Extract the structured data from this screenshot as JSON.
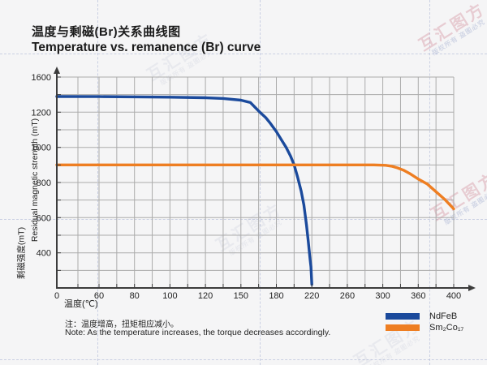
{
  "title": {
    "zh": "温度与剩磁(Br)关系曲线图",
    "en": "Temperature vs. remanence (Br) curve"
  },
  "axes": {
    "x": {
      "label": "温度(℃)",
      "ticks": [
        "0",
        "60",
        "80",
        "100",
        "120",
        "150",
        "180",
        "220",
        "260",
        "300",
        "360",
        "400"
      ]
    },
    "y": {
      "label_zh": "剩磁强度(mT)",
      "label_en": "Residual magnetic strength (mT)",
      "ticks": [
        "1600",
        "1200",
        "1000",
        "800",
        "600",
        "400"
      ]
    }
  },
  "chart_data": {
    "type": "line",
    "title": "温度与剩磁(Br)关系曲线图 / Temperature vs. remanence (Br) curve",
    "xlabel": "温度(℃)",
    "ylabel": "剩磁强度(mT) / Residual magnetic strength (mT)",
    "x_tick_values": [
      0,
      60,
      80,
      100,
      120,
      150,
      180,
      220,
      260,
      300,
      360,
      400
    ],
    "x_axis_style": "category-like: tick labels evenly spaced regardless of value",
    "y_tick_values": [
      1600,
      1200,
      1000,
      800,
      600,
      400,
      0
    ],
    "y_axis_style": "non-uniform: listed ticks evenly spaced in pixels",
    "grid": true,
    "legend_position": "bottom-right",
    "series": [
      {
        "name": "NdFeB",
        "color": "#1b4a9c",
        "points": [
          [
            0,
            1378
          ],
          [
            60,
            1377
          ],
          [
            80,
            1375
          ],
          [
            100,
            1371
          ],
          [
            120,
            1364
          ],
          [
            135,
            1356
          ],
          [
            150,
            1337
          ],
          [
            158,
            1310
          ],
          [
            166,
            1200
          ],
          [
            171,
            1169
          ],
          [
            175,
            1136
          ],
          [
            180,
            1090
          ],
          [
            186,
            1040
          ],
          [
            191,
            1000
          ],
          [
            196,
            950
          ],
          [
            200,
            900
          ],
          [
            204,
            830
          ],
          [
            208,
            750
          ],
          [
            211,
            672
          ],
          [
            214,
            558
          ],
          [
            216,
            465
          ],
          [
            218,
            330
          ],
          [
            219,
            240
          ],
          [
            220,
            40
          ]
        ]
      },
      {
        "name": "Sm₂Co₁₇",
        "color": "#ee7e22",
        "points": [
          [
            0,
            900
          ],
          [
            60,
            900
          ],
          [
            100,
            900
          ],
          [
            150,
            900
          ],
          [
            200,
            900
          ],
          [
            250,
            900
          ],
          [
            290,
            900
          ],
          [
            305,
            898
          ],
          [
            315,
            893
          ],
          [
            325,
            883
          ],
          [
            335,
            870
          ],
          [
            345,
            852
          ],
          [
            360,
            820
          ],
          [
            370,
            792
          ],
          [
            380,
            748
          ],
          [
            390,
            703
          ],
          [
            400,
            650
          ]
        ]
      }
    ]
  },
  "legend": {
    "items": [
      {
        "label": "NdFeB",
        "color": "#1b4a9c"
      },
      {
        "label": "Sm₂Co₁₇",
        "color": "#ee7e22"
      }
    ]
  },
  "note": {
    "zh": "注：温度增高，扭矩相应减小。",
    "en": "Note: As the temperature increases, the torque decreases accordingly."
  },
  "watermark": {
    "line1": "互汇图方",
    "line2": "版权所有 盗图必究"
  },
  "colors": {
    "background": "#f5f5f6",
    "grid": "#ababab",
    "axis": "#3c3c3c",
    "ndfeb": "#1b4a9c",
    "sm2co17": "#ee7e22"
  }
}
